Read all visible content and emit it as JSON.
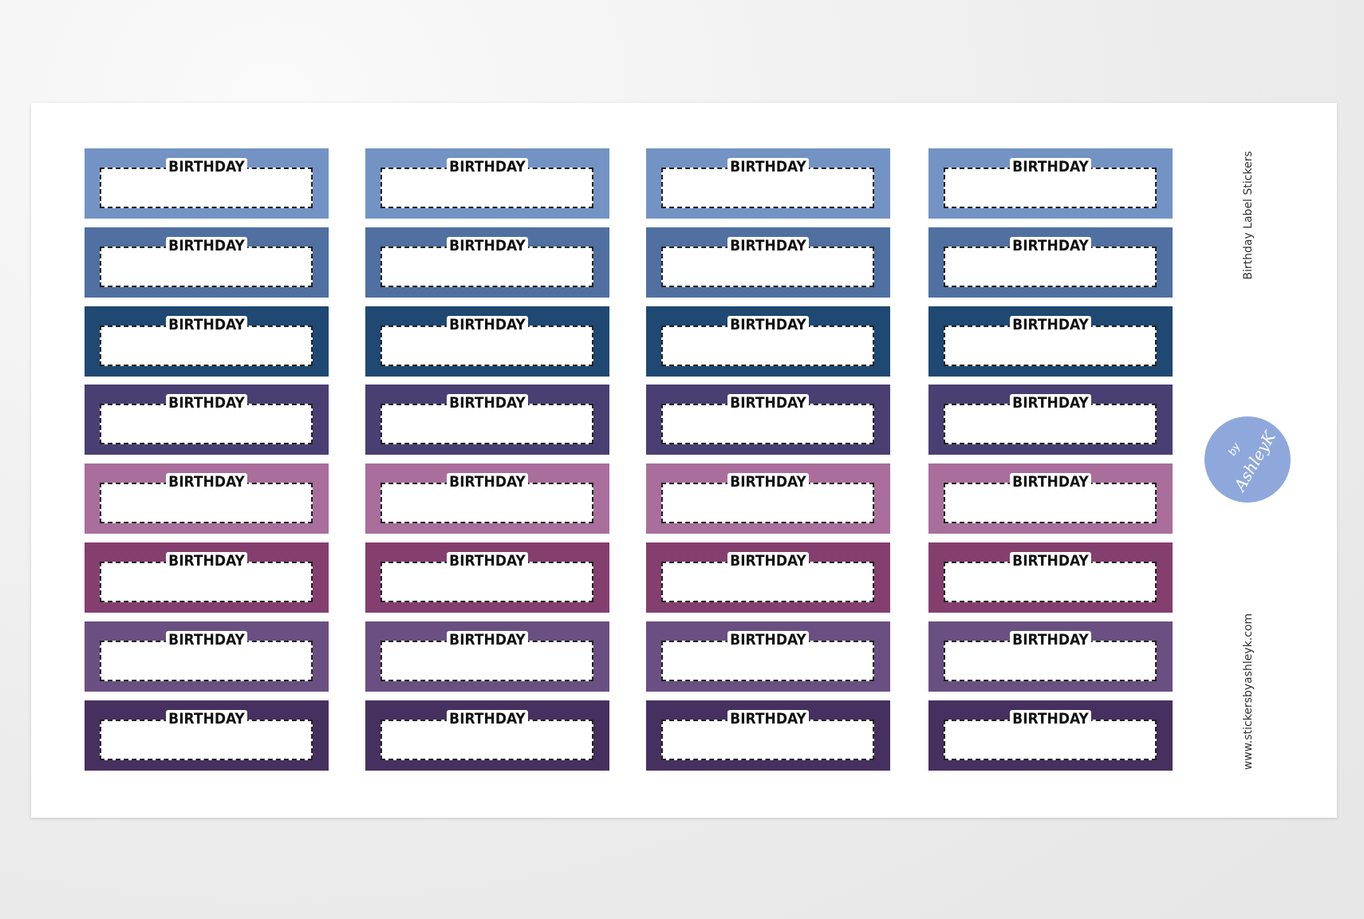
{
  "sheet": {
    "title": "Birthday  Label Stickers",
    "website": "www.stickersbyashleyk.com",
    "logo": {
      "by": "by",
      "name": "AshleyK"
    },
    "rows": [
      {
        "color": "#7393c4",
        "labels": [
          "BIRTHDAY",
          "BIRTHDAY",
          "BIRTHDAY",
          "BIRTHDAY"
        ]
      },
      {
        "color": "#4f70a1",
        "labels": [
          "BIRTHDAY",
          "BIRTHDAY",
          "BIRTHDAY",
          "BIRTHDAY"
        ]
      },
      {
        "color": "#1f4872",
        "labels": [
          "BIRTHDAY",
          "BIRTHDAY",
          "BIRTHDAY",
          "BIRTHDAY"
        ]
      },
      {
        "color": "#4a3f73",
        "labels": [
          "BIRTHDAY",
          "BIRTHDAY",
          "BIRTHDAY",
          "BIRTHDAY"
        ]
      },
      {
        "color": "#a96e9c",
        "labels": [
          "BIRTHDAY",
          "BIRTHDAY",
          "BIRTHDAY",
          "BIRTHDAY"
        ]
      },
      {
        "color": "#843f6f",
        "labels": [
          "BIRTHDAY",
          "BIRTHDAY",
          "BIRTHDAY",
          "BIRTHDAY"
        ]
      },
      {
        "color": "#6a4f83",
        "labels": [
          "BIRTHDAY",
          "BIRTHDAY",
          "BIRTHDAY",
          "BIRTHDAY"
        ]
      },
      {
        "color": "#46305f",
        "labels": [
          "BIRTHDAY",
          "BIRTHDAY",
          "BIRTHDAY",
          "BIRTHDAY"
        ]
      }
    ]
  }
}
